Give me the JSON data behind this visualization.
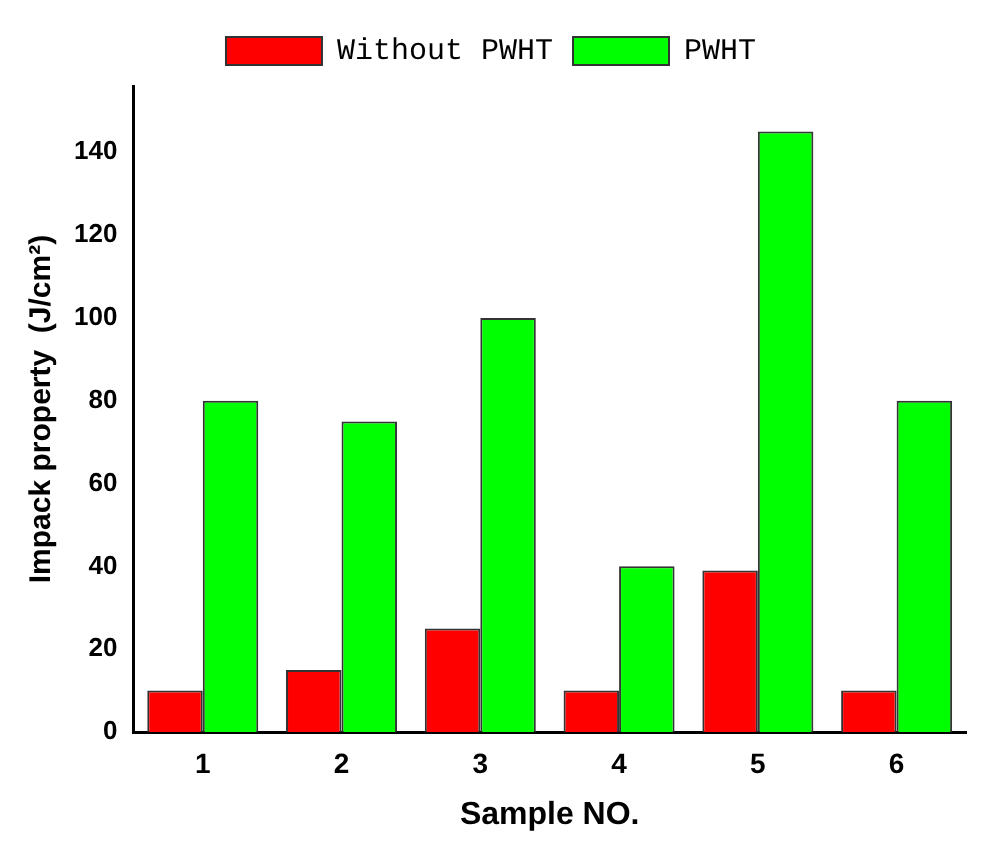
{
  "chart_data": {
    "type": "bar",
    "xlabel": "Sample NO.",
    "ylabel": "Impack property  (J/cm²)",
    "categories": [
      "1",
      "2",
      "3",
      "4",
      "5",
      "6"
    ],
    "series": [
      {
        "name": "Without PWHT",
        "color": "#ff0000",
        "values": [
          10,
          15,
          25,
          10,
          39,
          10
        ]
      },
      {
        "name": "PWHT",
        "color": "#00ff00",
        "values": [
          80,
          75,
          100,
          40,
          145,
          80
        ]
      }
    ],
    "ylim": [
      0,
      156
    ],
    "yticks": [
      0,
      20,
      40,
      60,
      80,
      100,
      120,
      140
    ],
    "grid": false,
    "legend": "top"
  }
}
